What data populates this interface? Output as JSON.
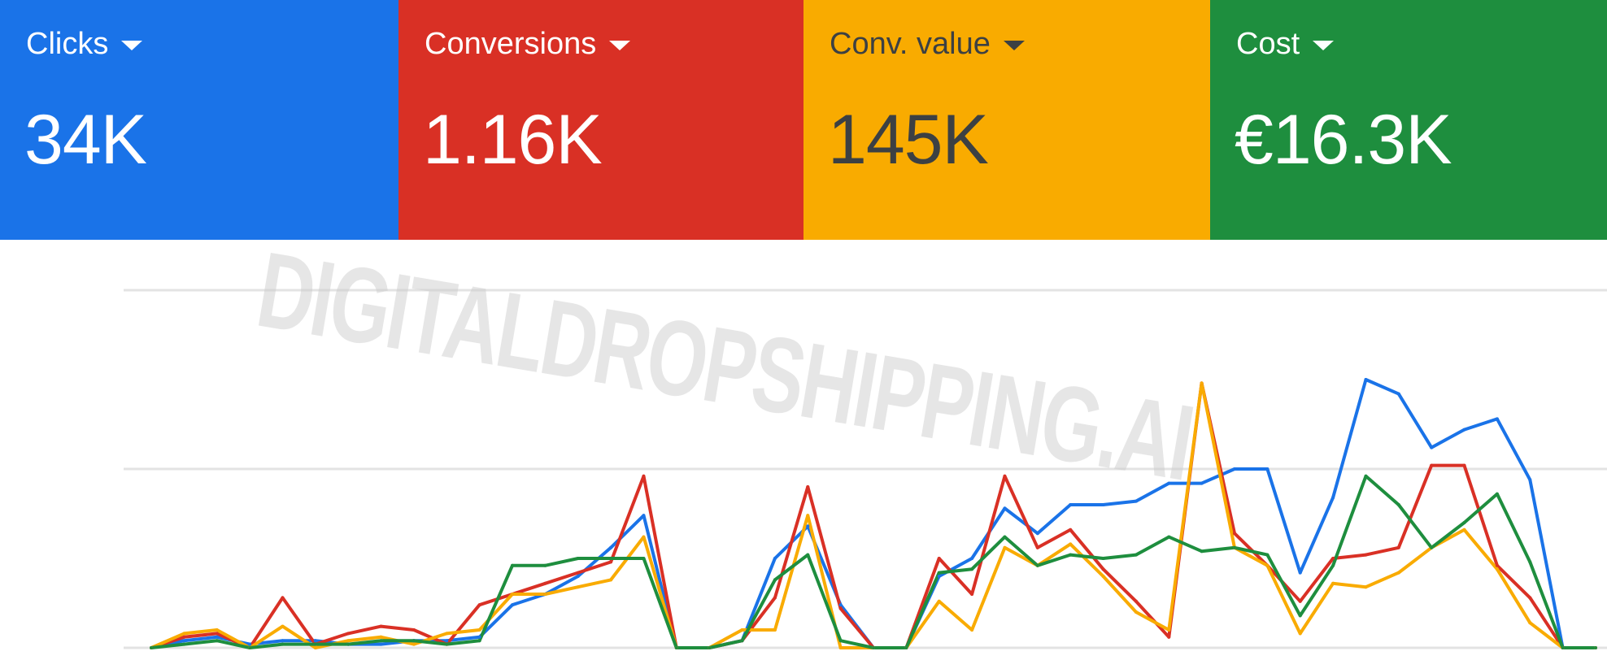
{
  "metrics": [
    {
      "label": "Clicks",
      "value": "34K",
      "bg": "#1a73e8",
      "fg": "#ffffff"
    },
    {
      "label": "Conversions",
      "value": "1.16K",
      "bg": "#d93025",
      "fg": "#ffffff"
    },
    {
      "label": "Conv. value",
      "value": "145K",
      "bg": "#f9ab00",
      "fg": "#3c4043"
    },
    {
      "label": "Cost",
      "value": "€16.3K",
      "bg": "#1e8e3e",
      "fg": "#ffffff"
    }
  ],
  "watermark": "DIGITALDROPSHIPPING.AI",
  "chart_data": {
    "type": "line",
    "grid": true,
    "x": [
      0,
      1,
      2,
      3,
      4,
      5,
      6,
      7,
      8,
      9,
      10,
      11,
      12,
      13,
      14,
      15,
      16,
      17,
      18,
      19,
      20,
      21,
      22,
      23,
      24,
      25,
      26,
      27,
      28,
      29,
      30,
      31,
      32,
      33,
      34,
      35,
      36,
      37,
      38,
      39,
      40,
      41,
      42,
      43,
      44
    ],
    "series": [
      {
        "color": "#1a73e8",
        "values": [
          0,
          2,
          3,
          1,
          2,
          2,
          1,
          1,
          2,
          2,
          3,
          12,
          15,
          20,
          28,
          37,
          0,
          0,
          2,
          25,
          34,
          12,
          0,
          0,
          20,
          25,
          39,
          32,
          40,
          40,
          41,
          46,
          46,
          50,
          50,
          21,
          42,
          75,
          71,
          56,
          61,
          64,
          47,
          0,
          0
        ]
      },
      {
        "color": "#d93025",
        "values": [
          0,
          3,
          4,
          0,
          14,
          1,
          4,
          6,
          5,
          1,
          12,
          15,
          18,
          21,
          24,
          48,
          0,
          0,
          2,
          14,
          45,
          11,
          0,
          0,
          25,
          15,
          48,
          28,
          33,
          22,
          13,
          3,
          74,
          32,
          23,
          13,
          25,
          26,
          28,
          51,
          51,
          23,
          14,
          0,
          0
        ]
      },
      {
        "color": "#f9ab00",
        "values": [
          0,
          4,
          5,
          0,
          6,
          0,
          2,
          3,
          1,
          4,
          5,
          15,
          15,
          17,
          19,
          31,
          0,
          0,
          5,
          5,
          37,
          0,
          0,
          0,
          13,
          5,
          28,
          23,
          29,
          20,
          10,
          5,
          74,
          28,
          23,
          4,
          18,
          17,
          21,
          28,
          33,
          22,
          7,
          0,
          0
        ]
      },
      {
        "color": "#1e8e3e",
        "values": [
          0,
          1,
          2,
          0,
          1,
          1,
          1,
          2,
          2,
          1,
          2,
          23,
          23,
          25,
          25,
          25,
          0,
          0,
          2,
          19,
          26,
          2,
          0,
          0,
          21,
          22,
          31,
          23,
          26,
          25,
          26,
          31,
          27,
          28,
          26,
          9,
          23,
          48,
          40,
          28,
          35,
          43,
          24,
          0,
          0
        ]
      }
    ]
  }
}
